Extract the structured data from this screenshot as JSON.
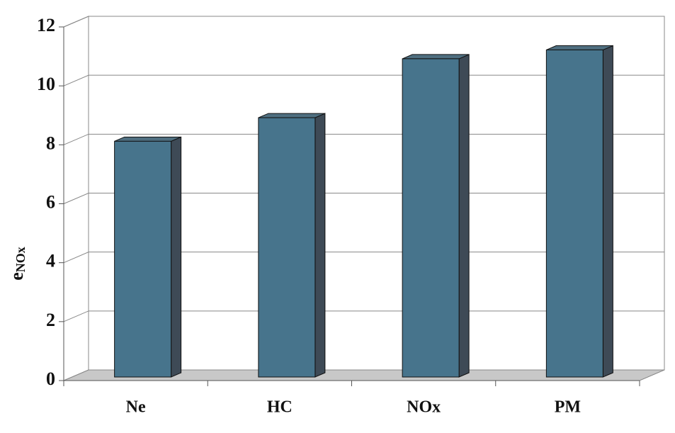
{
  "chart_data": {
    "type": "bar3d",
    "y_label": "e",
    "y_label_subscript": "NOx",
    "categories": [
      "Ne",
      "HC",
      "NOx",
      "PM"
    ],
    "values": [
      8.0,
      8.8,
      10.8,
      11.1
    ],
    "color": "#47748c",
    "ylim": [
      0,
      12
    ],
    "yticks": [
      0,
      2,
      4,
      6,
      8,
      10,
      12
    ],
    "grid": true
  }
}
